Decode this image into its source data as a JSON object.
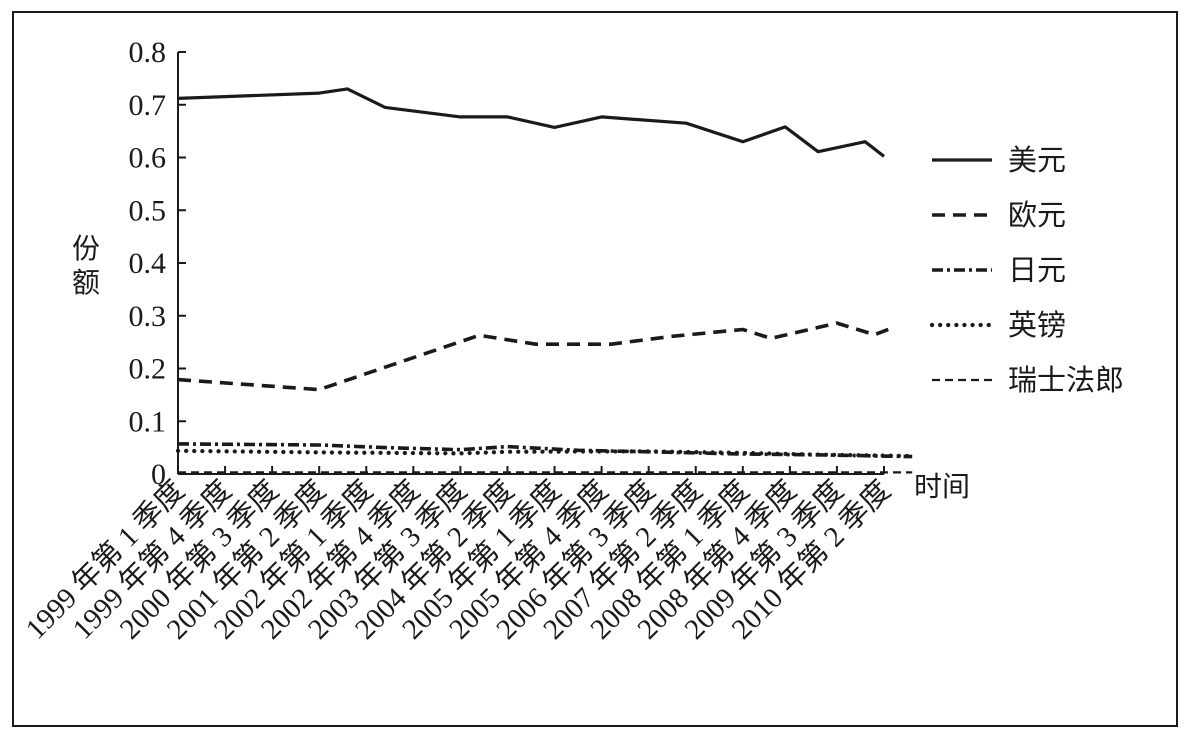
{
  "chart_data": {
    "type": "line",
    "title": "",
    "xlabel": "时间",
    "ylabel": "份额",
    "ylim": [
      0,
      0.8
    ],
    "yticks": [
      "0",
      "0.1",
      "0.2",
      "0.3",
      "0.4",
      "0.5",
      "0.6",
      "0.7",
      "0.8"
    ],
    "categories": [
      "1999 年第 1 季度",
      "1999 年第 4 季度",
      "2000 年第 3 季度",
      "2001 年第 2 季度",
      "2002 年第 1 季度",
      "2002 年第 4 季度",
      "2003 年第 3 季度",
      "2004 年第 2 季度",
      "2005 年第 1 季度",
      "2005 年第 4 季度",
      "2006 年第 3 季度",
      "2007 年第 2 季度",
      "2008 年第 1 季度",
      "2008 年第 4 季度",
      "2009 年第 3 季度",
      "2010 年第 2 季度"
    ],
    "grid": false,
    "legend_position": "right",
    "series": [
      {
        "name": "美元",
        "style": "solid",
        "color": "#1a1a1a",
        "values": [
          0.712,
          0.722,
          0.73,
          0.695,
          0.677,
          0.677,
          0.657,
          0.677,
          0.665,
          0.63,
          0.658,
          0.611,
          0.63,
          0.602
        ],
        "x": [
          0,
          3,
          3.6,
          4.4,
          6,
          7.0,
          8.0,
          9.0,
          10.8,
          12.0,
          12.9,
          13.6,
          14.6,
          15.0
        ]
      },
      {
        "name": "欧元",
        "style": "dashed",
        "color": "#1a1a1a",
        "values": [
          0.179,
          0.16,
          0.263,
          0.246,
          0.246,
          0.261,
          0.274,
          0.257,
          0.286,
          0.264,
          0.278
        ],
        "x": [
          0,
          3.0,
          6.4,
          7.6,
          9.2,
          10.5,
          12.0,
          12.6,
          14.0,
          14.8,
          15.2
        ]
      },
      {
        "name": "日元",
        "style": "dashdot",
        "color": "#1a1a1a",
        "values": [
          0.057,
          0.055,
          0.05,
          0.046,
          0.052,
          0.045,
          0.042,
          0.038,
          0.036,
          0.033
        ],
        "x": [
          0,
          3.0,
          4.4,
          6.0,
          7.0,
          8.5,
          10.0,
          12.0,
          13.8,
          15.6
        ]
      },
      {
        "name": "英镑",
        "style": "dotted",
        "color": "#1a1a1a",
        "values": [
          0.044,
          0.041,
          0.039,
          0.042,
          0.043,
          0.04,
          0.037,
          0.034
        ],
        "x": [
          0,
          3.0,
          6.0,
          7.0,
          10.0,
          12.0,
          13.5,
          15.6
        ]
      },
      {
        "name": "瑞士法郎",
        "style": "thin-dashed",
        "color": "#1a1a1a",
        "values": [
          0.003,
          0.003,
          0.003,
          0.003
        ],
        "x": [
          0,
          5.0,
          10.0,
          15.6
        ]
      }
    ]
  }
}
